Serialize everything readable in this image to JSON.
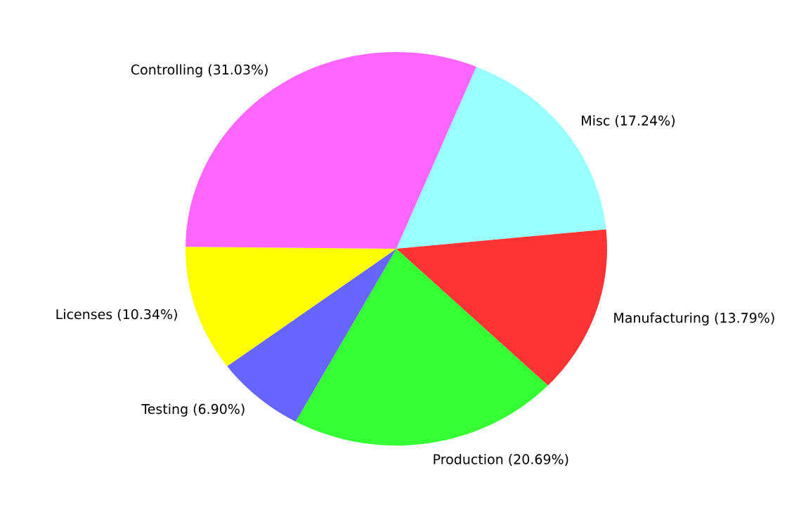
{
  "chart_data": {
    "type": "pie",
    "categories": [
      "Misc (17.24%)",
      "Manufacturing (13.79%)",
      "Production (20.69%)",
      "Testing (6.90%)",
      "Licenses (10.34%)",
      "Controlling (31.03%)"
    ],
    "values": [
      17.24,
      13.79,
      20.69,
      6.9,
      10.34,
      31.03
    ],
    "colors": [
      "#99ffff",
      "#ff3333",
      "#33ff33",
      "#6666ff",
      "#ffff00",
      "#ff66ff"
    ]
  }
}
